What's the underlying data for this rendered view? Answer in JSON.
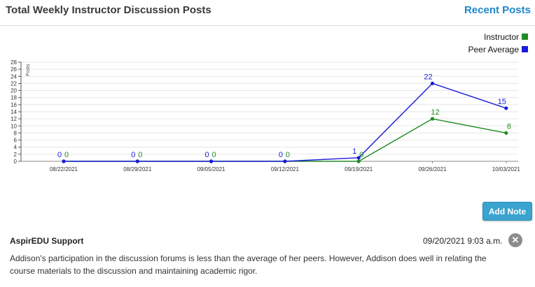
{
  "header": {
    "title": "Total Weekly Instructor Discussion Posts",
    "recent_posts_link": "Recent Posts"
  },
  "legend": {
    "instructor": "Instructor",
    "peer_average": "Peer Average"
  },
  "colors": {
    "instructor": "#228b22",
    "peer_average": "#1a1adb",
    "accent": "#1c87c9",
    "button": "#3aa3cf"
  },
  "chart_data": {
    "type": "line",
    "ylabel": "Posts",
    "ylim": [
      0,
      28
    ],
    "yticks": [
      "0",
      "2",
      "4",
      "6",
      "8",
      "10",
      "12",
      "14",
      "16",
      "18",
      "20",
      "22",
      "24",
      "26",
      "28"
    ],
    "categories": [
      "08/22/2021",
      "08/29/2021",
      "09/05/2021",
      "09/12/2021",
      "09/19/2021",
      "09/26/2021",
      "10/03/2021"
    ],
    "grid": true,
    "legend_position": "top-right",
    "series": [
      {
        "name": "Instructor",
        "values": [
          0,
          0,
          0,
          0,
          0,
          12,
          8
        ]
      },
      {
        "name": "Peer Average",
        "values": [
          0,
          0,
          0,
          0,
          1,
          22,
          15
        ]
      }
    ]
  },
  "actions": {
    "add_note_label": "Add Note"
  },
  "note": {
    "author": "AspirEDU Support",
    "timestamp": "09/20/2021 9:03 a.m.",
    "close_icon": "close-icon",
    "text": "Addison's participation in the discussion forums is less than the average of her peers. However, Addison does well in relating the course materials to the discussion and maintaining academic rigor."
  }
}
